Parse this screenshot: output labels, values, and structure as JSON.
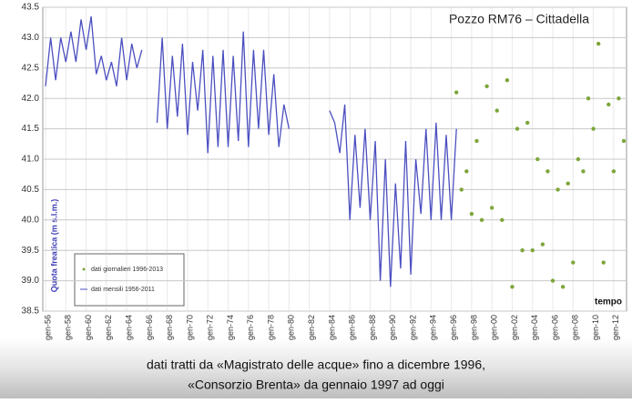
{
  "chart_data": {
    "type": "line",
    "title": "Pozzo RM76 – Cittadella",
    "y_label": "Quota freatica (m s.l.m.)",
    "x_label": "tempo",
    "caption": [
      "dati tratti da «Magistrato delle acque» fino a dicembre 1996,",
      "«Consorzio Brenta» da gennaio 1997 ad oggi"
    ],
    "ylim": [
      38.5,
      43.5
    ],
    "yticks": [
      38.5,
      {
        "value": 39,
        "label": "39.0"
      },
      39.5,
      {
        "value": 40,
        "label": "40.0"
      },
      40.5,
      {
        "value": 41,
        "label": "41.0"
      },
      41.5,
      {
        "value": 42,
        "label": "42.0"
      },
      42.5,
      {
        "value": 43,
        "label": "43.0"
      },
      43.5
    ],
    "grid": true,
    "legend": "bottom-left",
    "categories": [
      "gen-56",
      null,
      null,
      null,
      "gen-58",
      null,
      null,
      null,
      "gen-60",
      null,
      null,
      null,
      "gen-62",
      null,
      null,
      null,
      "gen-64",
      null,
      null,
      null,
      "gen-66",
      null,
      null,
      null,
      "gen-68",
      null,
      null,
      null,
      "gen-70",
      null,
      null,
      null,
      "gen-72",
      null,
      null,
      null,
      "gen-74",
      null,
      null,
      null,
      "gen-76",
      null,
      null,
      null,
      "gen-78",
      null,
      null,
      null,
      "gen-80",
      null,
      null,
      null,
      "gen-82",
      null,
      null,
      null,
      "gen-84",
      null,
      null,
      null,
      "gen-86",
      null,
      null,
      null,
      "gen-88",
      null,
      null,
      null,
      "gen-90",
      null,
      null,
      null,
      "gen-92",
      null,
      null,
      null,
      "gen-94",
      null,
      null,
      null,
      "gen-96",
      null,
      null,
      null,
      "gen-98",
      null,
      null,
      null,
      "gen-00",
      null,
      null,
      null,
      "gen-02",
      null,
      null,
      null,
      "gen-04",
      null,
      null,
      null,
      "gen-06",
      null,
      null,
      null,
      "gen-08",
      null,
      null,
      null,
      "gen-10",
      null,
      null,
      null,
      "gen-12",
      null,
      null
    ],
    "series": [
      {
        "name": "dati mensili 1956-2011",
        "color": "#4b4fc0",
        "style": "line",
        "values": [
          42.2,
          43.0,
          42.3,
          43.0,
          42.6,
          43.1,
          42.6,
          43.3,
          42.8,
          43.35,
          42.4,
          42.7,
          42.3,
          42.6,
          42.2,
          43.0,
          42.3,
          42.9,
          42.5,
          42.8,
          null,
          null,
          41.6,
          43.0,
          41.5,
          42.7,
          41.7,
          42.9,
          41.4,
          42.6,
          41.8,
          42.8,
          41.1,
          42.7,
          41.2,
          42.8,
          41.2,
          42.7,
          41.3,
          43.1,
          41.2,
          42.8,
          41.5,
          42.8,
          41.4,
          42.4,
          41.2,
          41.9,
          41.5,
          null,
          41.8,
          null,
          41.7,
          null,
          41.5,
          null,
          41.8,
          41.6,
          41.1,
          41.9,
          40.0,
          41.4,
          40.2,
          41.5,
          40.0,
          41.3,
          39.0,
          41.0,
          38.9,
          40.6,
          39.2,
          41.3,
          39.1,
          41.0,
          40.1,
          41.5,
          40.0,
          41.6,
          40.0,
          41.4,
          40.0,
          41.5,
          null,
          null,
          null,
          null,
          null,
          null,
          null,
          null,
          null,
          null,
          null,
          null,
          null,
          null,
          null,
          null,
          null,
          null,
          null,
          null,
          null,
          null,
          null,
          null,
          null,
          null,
          null,
          null,
          null,
          null,
          null,
          null,
          null
        ]
      },
      {
        "name": "dati giornalieri 1996-2013",
        "color": "#7da63a",
        "style": "dots",
        "values": [
          null,
          null,
          null,
          null,
          null,
          null,
          null,
          null,
          null,
          null,
          null,
          null,
          null,
          null,
          null,
          null,
          null,
          null,
          null,
          null,
          null,
          null,
          null,
          null,
          null,
          null,
          null,
          null,
          null,
          null,
          null,
          null,
          null,
          null,
          null,
          null,
          null,
          null,
          null,
          null,
          null,
          null,
          null,
          null,
          null,
          null,
          null,
          null,
          null,
          null,
          null,
          null,
          null,
          null,
          null,
          null,
          null,
          null,
          null,
          null,
          null,
          null,
          null,
          null,
          null,
          null,
          null,
          null,
          null,
          null,
          null,
          null,
          null,
          null,
          null,
          null,
          null,
          null,
          null,
          null,
          null,
          42.1,
          40.5,
          40.8,
          40.1,
          41.3,
          40.0,
          42.2,
          40.2,
          41.8,
          40.0,
          42.3,
          38.9,
          41.5,
          39.5,
          41.6,
          39.5,
          41.0,
          39.6,
          40.8,
          39.0,
          40.5,
          38.9,
          40.6,
          39.3,
          41.0,
          40.8,
          42.0,
          41.5,
          42.9,
          39.3,
          41.9,
          40.8,
          42.0,
          41.3
        ]
      }
    ]
  }
}
